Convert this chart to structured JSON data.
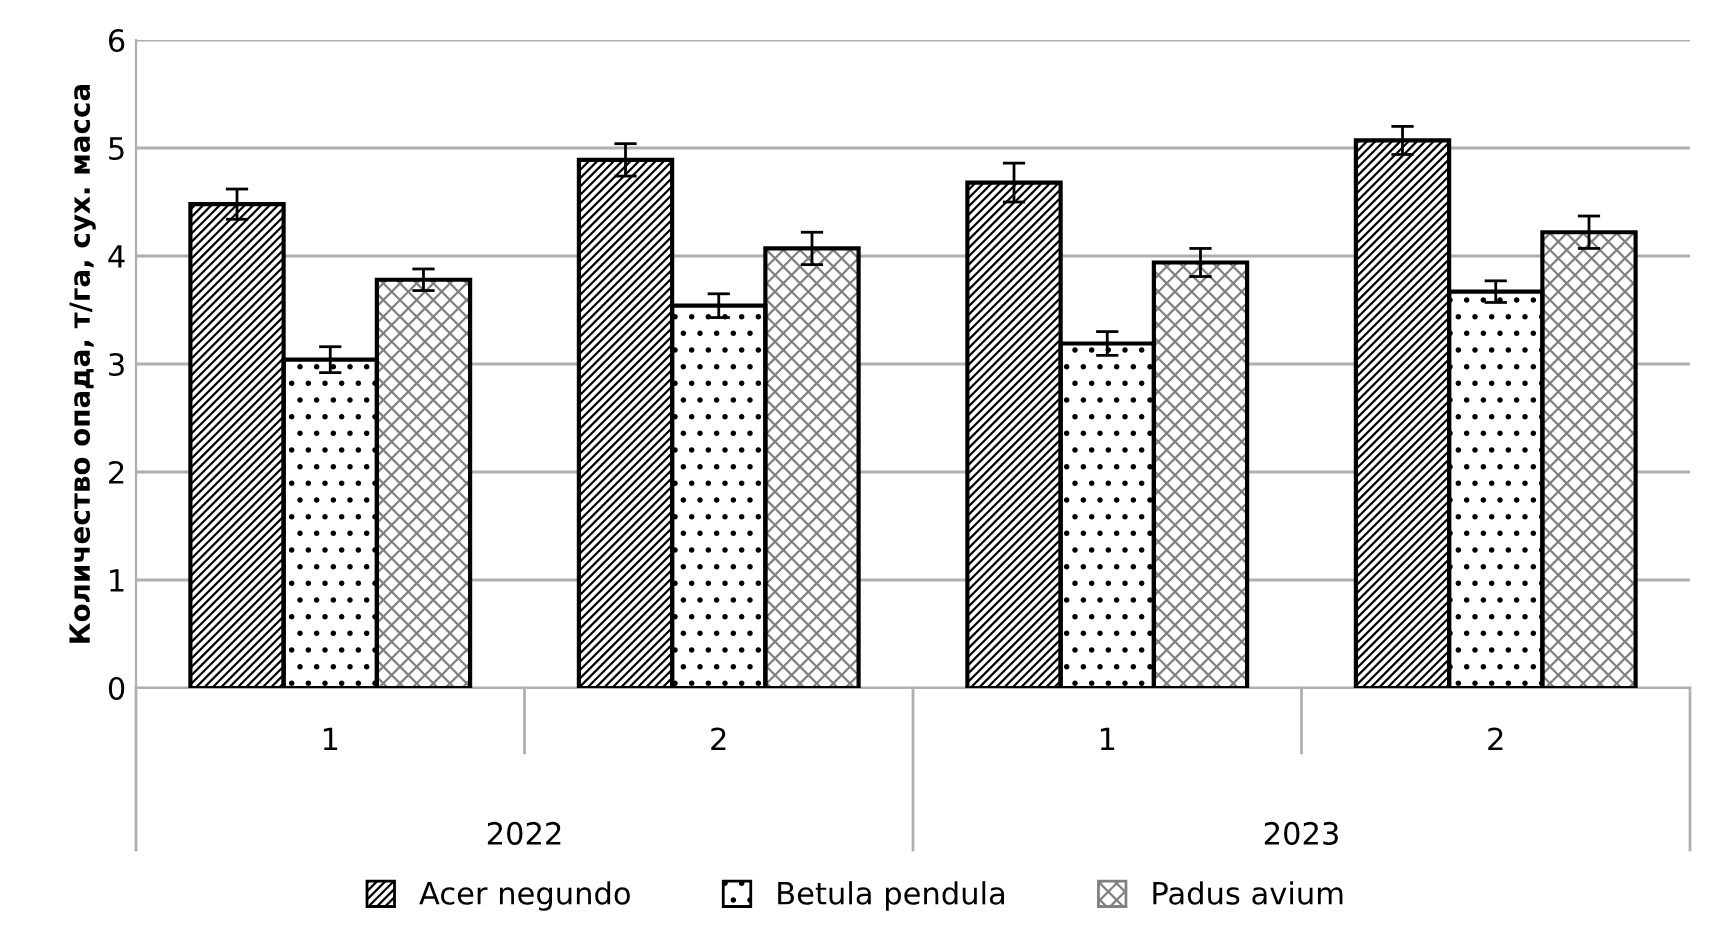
{
  "chart_data": {
    "type": "bar",
    "ylabel": "Количество опада, т/га, сух. масса",
    "categories": [
      "1",
      "2",
      "1",
      "2"
    ],
    "annotations": [
      "2022",
      "2023"
    ],
    "series": [
      {
        "name": "Acer negundo",
        "color": "#000000",
        "values": [
          4.48,
          4.89,
          4.68,
          5.07
        ],
        "errors": [
          0.14,
          0.15,
          0.18,
          0.13
        ]
      },
      {
        "name": "Betula pendula",
        "color": "#000000",
        "values": [
          3.04,
          3.54,
          3.19,
          3.67
        ],
        "errors": [
          0.12,
          0.11,
          0.11,
          0.1
        ]
      },
      {
        "name": "Padus avium",
        "color": "#808080",
        "values": [
          3.78,
          4.07,
          3.94,
          4.22
        ],
        "errors": [
          0.1,
          0.15,
          0.13,
          0.15
        ]
      }
    ],
    "ylim": [
      0,
      6
    ],
    "yticks": [
      0,
      1,
      2,
      3,
      4,
      5,
      6
    ],
    "grid": "y",
    "legend": "bottom"
  }
}
